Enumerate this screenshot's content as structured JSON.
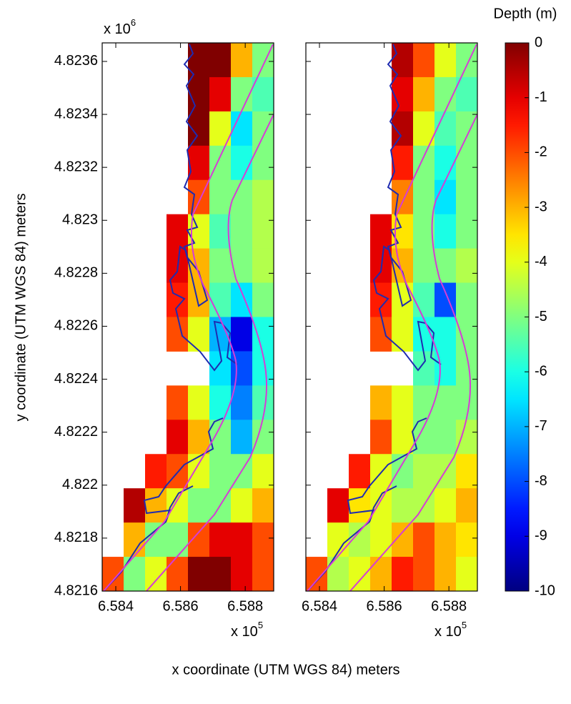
{
  "chart_data": {
    "type": "heatmap",
    "xlabel": "x coordinate (UTM WGS 84) meters",
    "ylabel": "y coordinate (UTM WGS 84) meters",
    "ylim": [
      4.8216,
      4.82367
    ],
    "yticks": [
      4.8216,
      4.8218,
      4.822,
      4.8222,
      4.8224,
      4.8226,
      4.8228,
      4.823,
      4.8232,
      4.8234,
      4.8236
    ],
    "y_multiplier": "x 10",
    "y_multiplier_exp": "6",
    "colorbar": {
      "title": "Depth (m)",
      "lim": [
        -10,
        0
      ],
      "ticks": [
        0,
        -1,
        -2,
        -3,
        -4,
        -5,
        -6,
        -7,
        -8,
        -9,
        -10
      ]
    },
    "panels": [
      {
        "xlim": [
          6.58358,
          6.58888
        ],
        "xticks": [
          6.584,
          6.586,
          6.588
        ],
        "x_multiplier": "x 10",
        "x_multiplier_exp": "5",
        "z": [
          [
            null,
            null,
            null,
            null,
            0,
            0,
            -3,
            -5
          ],
          [
            null,
            null,
            null,
            null,
            0,
            -1,
            -5,
            -5.5
          ],
          [
            null,
            null,
            null,
            null,
            0,
            -4,
            -6.5,
            -5
          ],
          [
            null,
            null,
            null,
            null,
            -1,
            -5,
            -6,
            -5
          ],
          [
            null,
            null,
            null,
            null,
            -2,
            -5,
            -5,
            -4.5
          ],
          [
            null,
            null,
            null,
            -1,
            -4,
            -5.5,
            -5,
            -4.5
          ],
          [
            null,
            null,
            null,
            -1,
            -3,
            -5,
            -5,
            -4.5
          ],
          [
            null,
            null,
            null,
            -1.5,
            -3,
            -5.5,
            -6.5,
            -5
          ],
          [
            null,
            null,
            null,
            -2,
            -4,
            -7,
            -9,
            -6
          ],
          [
            null,
            null,
            null,
            null,
            null,
            -6.5,
            -8,
            -6
          ],
          [
            null,
            null,
            null,
            -2,
            -4,
            -6,
            -7.5,
            -5.5
          ],
          [
            null,
            null,
            null,
            -1,
            -3,
            -5,
            -7,
            -5
          ],
          [
            null,
            null,
            -1.5,
            -2,
            -4,
            -5,
            -5,
            -4
          ],
          [
            null,
            -0.5,
            -3,
            -4,
            -5,
            -5,
            -4,
            -3
          ],
          [
            null,
            -3,
            -5,
            -5,
            -2,
            -1,
            -1,
            -2
          ],
          [
            -2,
            -5,
            -4,
            -2,
            0,
            0,
            -1,
            -2
          ]
        ]
      },
      {
        "xlim": [
          6.58358,
          6.58888
        ],
        "xticks": [
          6.584,
          6.586,
          6.588
        ],
        "x_multiplier": "x 10",
        "x_multiplier_exp": "5",
        "z": [
          [
            null,
            null,
            null,
            null,
            -0.5,
            -2,
            -4,
            -5
          ],
          [
            null,
            null,
            null,
            null,
            -1,
            -3,
            -5,
            -5.5
          ],
          [
            null,
            null,
            null,
            null,
            -0.5,
            -4,
            -5.5,
            -5
          ],
          [
            null,
            null,
            null,
            null,
            -1.5,
            -5,
            -6,
            -5
          ],
          [
            null,
            null,
            null,
            null,
            -2.5,
            -5,
            -6.5,
            -5
          ],
          [
            null,
            null,
            null,
            -1,
            -3.5,
            -5,
            -6,
            -5
          ],
          [
            null,
            null,
            null,
            -1,
            -3,
            -5,
            -5,
            -4.5
          ],
          [
            null,
            null,
            null,
            -1.5,
            -4,
            -5.5,
            -8,
            -5
          ],
          [
            null,
            null,
            null,
            -2,
            -4,
            -6,
            -6,
            -5
          ],
          [
            null,
            null,
            null,
            null,
            null,
            -5.5,
            -6,
            -5
          ],
          [
            null,
            null,
            null,
            -3,
            -4,
            -5,
            -5,
            -5
          ],
          [
            null,
            null,
            null,
            -2,
            -4,
            -5,
            -5,
            -4.5
          ],
          [
            null,
            null,
            -1.5,
            -4,
            -5,
            -4.5,
            -4.5,
            -3.5
          ],
          [
            null,
            -1,
            -3.5,
            -4,
            -4.5,
            -4.5,
            -4,
            -3
          ],
          [
            null,
            -4,
            -4.5,
            -4,
            -3,
            -2,
            -3,
            -3.5
          ],
          [
            -2,
            -4.5,
            -4,
            -3,
            -1.5,
            -2,
            -3,
            -4
          ]
        ]
      }
    ]
  }
}
